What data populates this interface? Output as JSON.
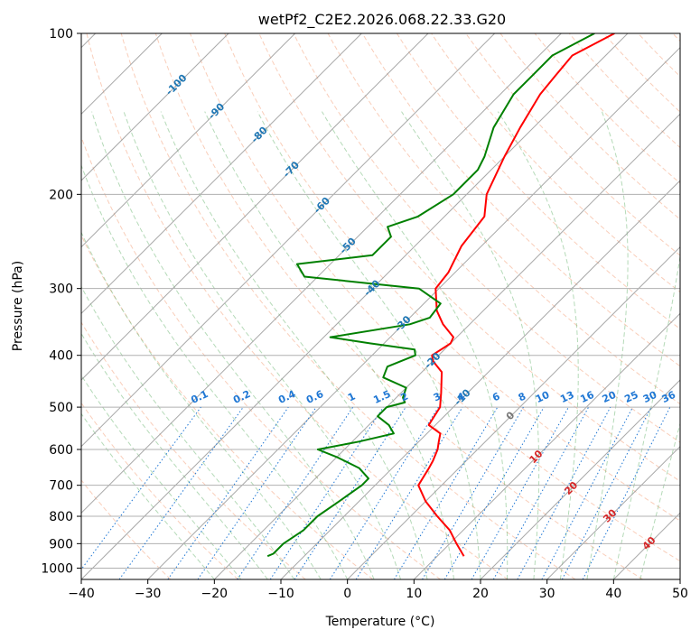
{
  "chart_data": {
    "type": "line",
    "subtype": "skew-t log-p diagram",
    "title": "wetPf2_C2E2.2026.068.22.33.G20",
    "xlabel": "Temperature (°C)",
    "ylabel": "Pressure (hPa)",
    "xlim": [
      -40,
      50
    ],
    "ylim": [
      1050,
      100
    ],
    "y_scale": "log",
    "grid": true,
    "x_ticks": [
      -40,
      -30,
      -20,
      -10,
      0,
      10,
      20,
      30,
      40,
      50
    ],
    "y_ticks": [
      100,
      200,
      300,
      400,
      500,
      600,
      700,
      800,
      900,
      1000
    ],
    "isotherm_labels": [
      {
        "label": "-100",
        "value": -100
      },
      {
        "label": "-90",
        "value": -90
      },
      {
        "label": "-80",
        "value": -80
      },
      {
        "label": "-70",
        "value": -70
      },
      {
        "label": "-60",
        "value": -60
      },
      {
        "label": "-50",
        "value": -50
      },
      {
        "label": "-40",
        "value": -40
      },
      {
        "label": "-30",
        "value": -30
      },
      {
        "label": "-20",
        "value": -20
      },
      {
        "label": "-10",
        "value": -10
      },
      {
        "label": "0",
        "value": 0
      },
      {
        "label": "10",
        "value": 10
      },
      {
        "label": "20",
        "value": 20
      },
      {
        "label": "30",
        "value": 30
      },
      {
        "label": "40",
        "value": 40
      }
    ],
    "mixing_ratio_labels": [
      "0.1",
      "0.2",
      "0.4",
      "0.6",
      "1",
      "1.5",
      "2",
      "3",
      "4",
      "6",
      "8",
      "10",
      "13",
      "16",
      "20",
      "25",
      "30",
      "36"
    ],
    "series": [
      {
        "color": "#ff0000",
        "points": [
          [
            100,
            -42
          ],
          [
            110,
            -45
          ],
          [
            120,
            -44.5
          ],
          [
            130,
            -44
          ],
          [
            150,
            -42
          ],
          [
            170,
            -40
          ],
          [
            200,
            -37
          ],
          [
            220,
            -34
          ],
          [
            250,
            -33
          ],
          [
            280,
            -31
          ],
          [
            300,
            -30.5
          ],
          [
            330,
            -27
          ],
          [
            350,
            -24
          ],
          [
            370,
            -20.5
          ],
          [
            380,
            -20
          ],
          [
            400,
            -21
          ],
          [
            410,
            -20
          ],
          [
            430,
            -17
          ],
          [
            470,
            -14
          ],
          [
            500,
            -12
          ],
          [
            540,
            -11
          ],
          [
            560,
            -8
          ],
          [
            580,
            -7
          ],
          [
            600,
            -6
          ],
          [
            630,
            -5
          ],
          [
            650,
            -4.5
          ],
          [
            700,
            -3.5
          ],
          [
            750,
            0
          ],
          [
            800,
            4
          ],
          [
            850,
            8
          ],
          [
            900,
            11
          ],
          [
            950,
            14
          ]
        ]
      },
      {
        "color": "#008000",
        "points": [
          [
            100,
            -45
          ],
          [
            110,
            -48
          ],
          [
            120,
            -48
          ],
          [
            130,
            -48
          ],
          [
            150,
            -46
          ],
          [
            170,
            -43
          ],
          [
            180,
            -42
          ],
          [
            200,
            -42
          ],
          [
            220,
            -44
          ],
          [
            230,
            -47
          ],
          [
            240,
            -45
          ],
          [
            260,
            -45
          ],
          [
            270,
            -55
          ],
          [
            285,
            -52
          ],
          [
            300,
            -33
          ],
          [
            320,
            -27.5
          ],
          [
            340,
            -27
          ],
          [
            350,
            -29
          ],
          [
            370,
            -39
          ],
          [
            380,
            -32
          ],
          [
            390,
            -24.5
          ],
          [
            400,
            -23.5
          ],
          [
            420,
            -26
          ],
          [
            440,
            -25
          ],
          [
            460,
            -20
          ],
          [
            480,
            -19
          ],
          [
            490,
            -18
          ],
          [
            500,
            -20
          ],
          [
            520,
            -20
          ],
          [
            540,
            -17
          ],
          [
            560,
            -15
          ],
          [
            580,
            -19
          ],
          [
            600,
            -24
          ],
          [
            620,
            -20
          ],
          [
            650,
            -15
          ],
          [
            680,
            -12
          ],
          [
            700,
            -12
          ],
          [
            750,
            -13
          ],
          [
            800,
            -14
          ],
          [
            850,
            -14
          ],
          [
            900,
            -15
          ],
          [
            940,
            -15
          ],
          [
            950,
            -15.5
          ]
        ]
      }
    ]
  },
  "colors": {
    "temperature": "#ff0000",
    "dewpoint": "#008000",
    "isotherm_grid": "#999999",
    "dry_adiabat": "#f4a582",
    "moist_adiabat": "#5aae61",
    "mixing_ratio": "#1f77d4",
    "isotherm_label": "#1f77b4",
    "warm_isotherm_label": "#d62728",
    "zero_label": "#777777"
  }
}
